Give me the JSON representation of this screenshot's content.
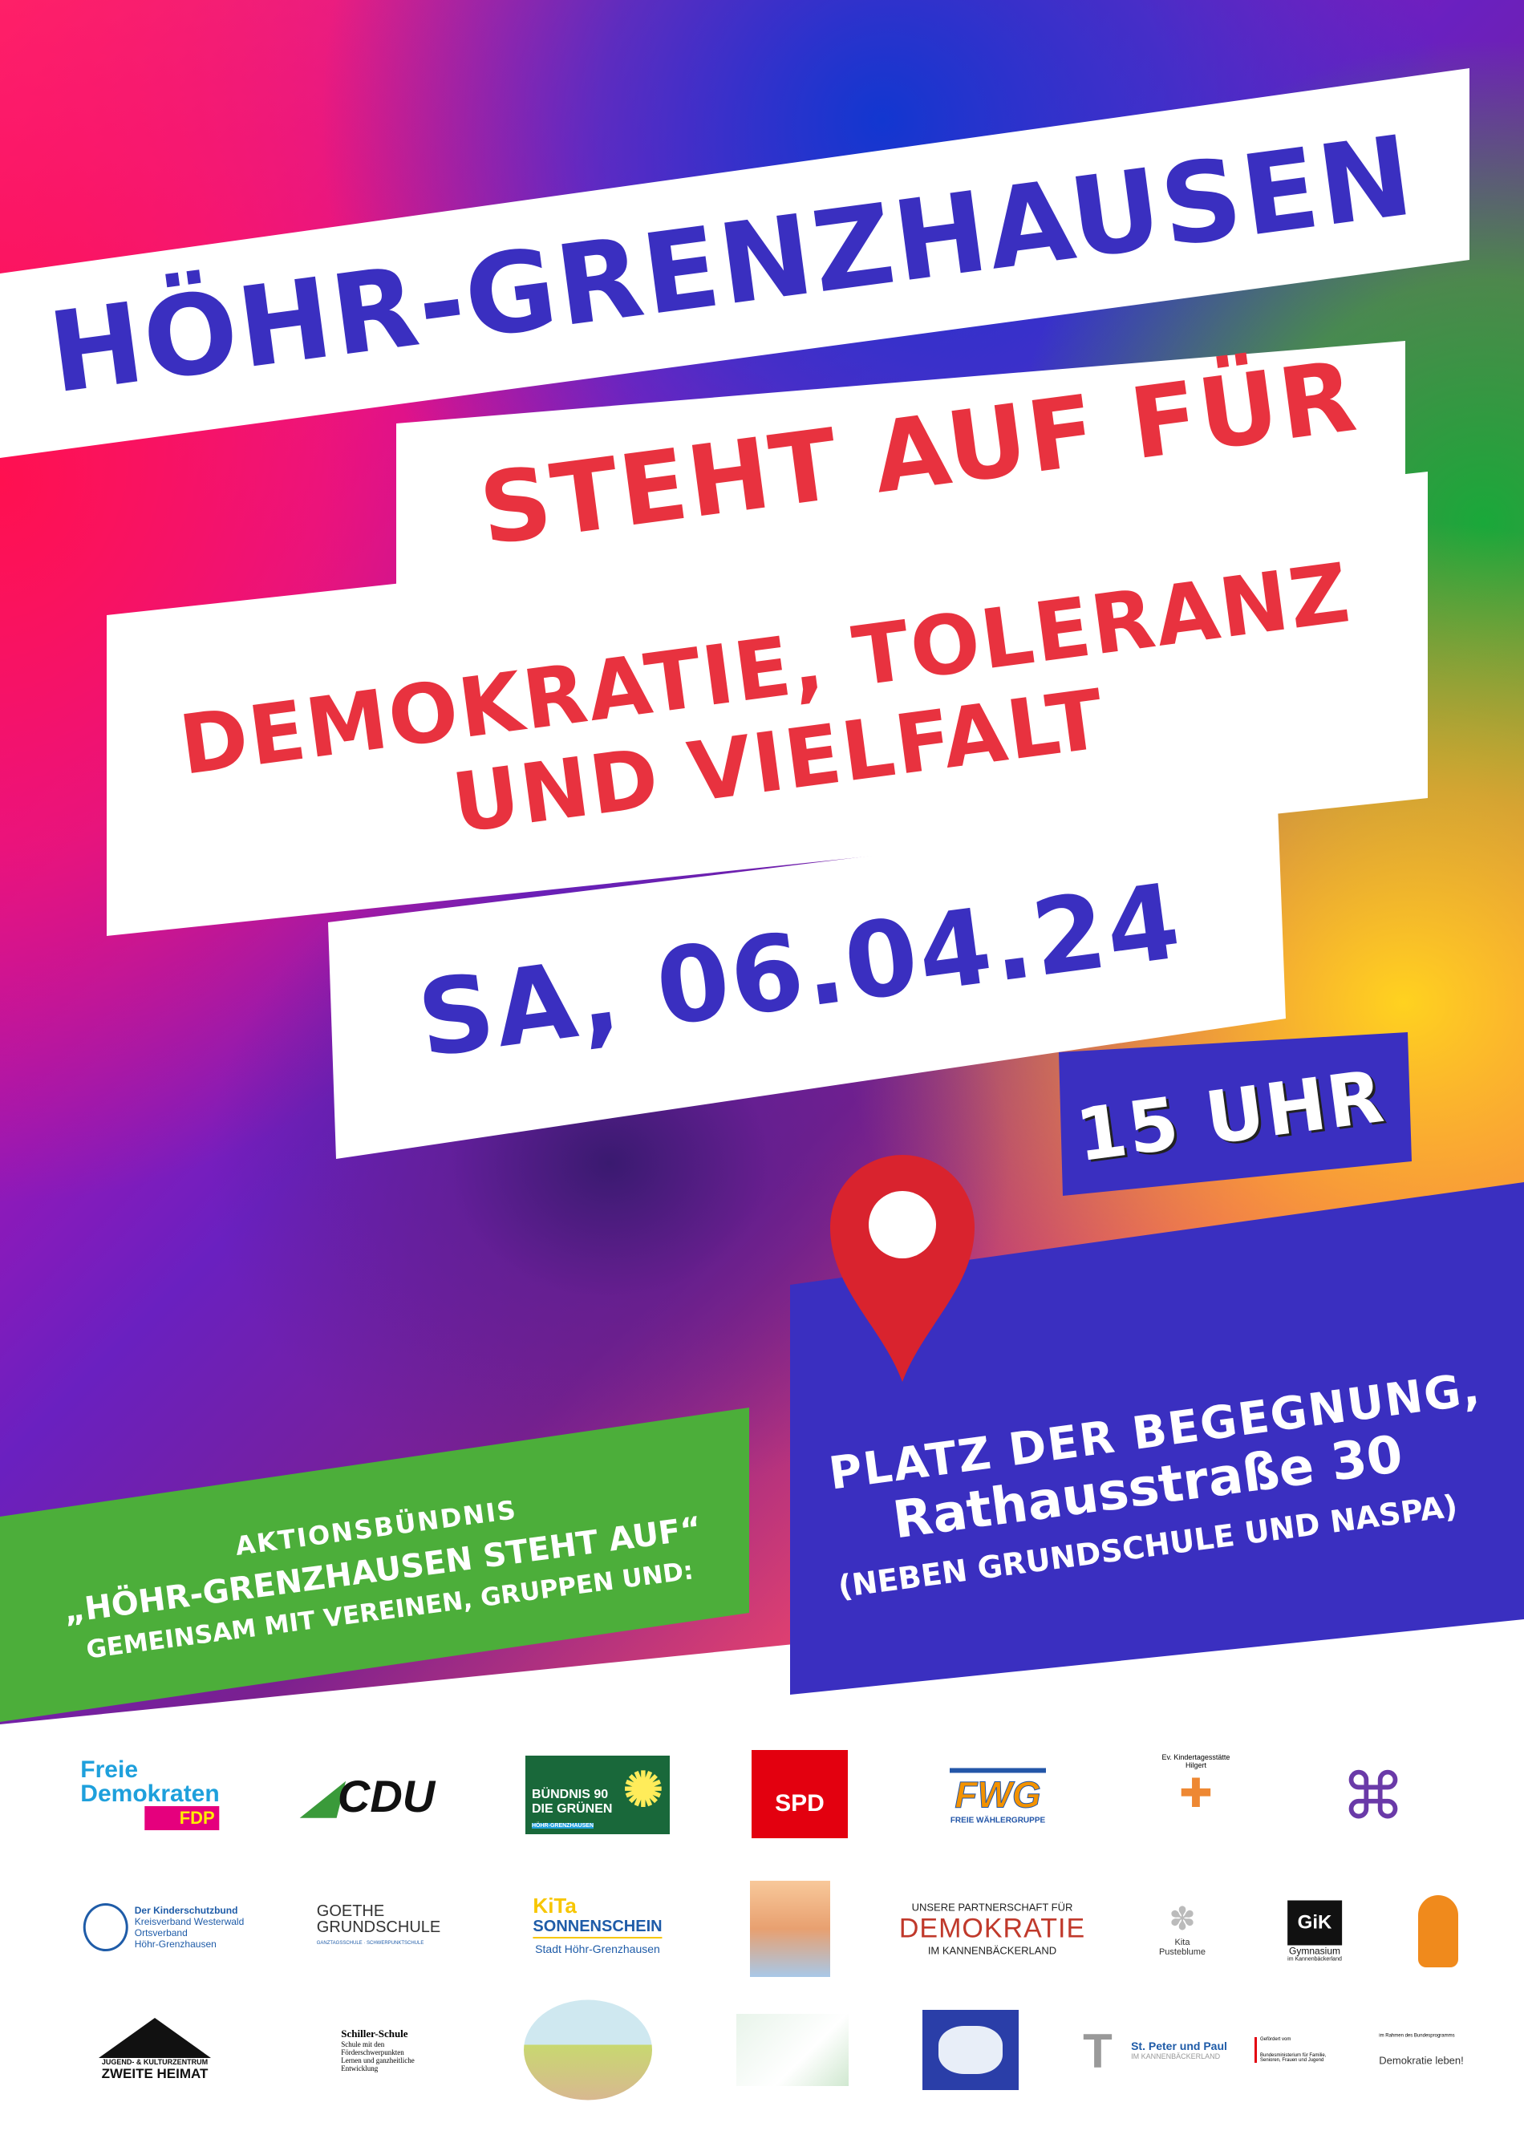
{
  "title_line1": "HÖHR-GRENZHAUSEN",
  "title_line2": "STEHT AUF FÜR",
  "title_line3": "DEMOKRATIE, TOLERANZ",
  "title_line4": "UND VIELFALT",
  "date": "SA, 06.04.24",
  "time": "15 UHR",
  "location": {
    "line1": "PLATZ DER BEGEGNUNG,",
    "line2": "Rathausstraße 30",
    "line3": "(NEBEN GRUNDSCHULE UND NASPA)",
    "icon": "map-pin-icon"
  },
  "alliance": {
    "line1": "AKTIONSBÜNDNIS",
    "line2": "„HÖHR-GRENZHAUSEN STEHT AUF“",
    "line3": "GEMEINSAM MIT VEREINEN, GRUPPEN UND:"
  },
  "colors": {
    "blue": "#3a2fc0",
    "red": "#e8323f",
    "green": "#4cae3a",
    "pin": "#d9232e"
  },
  "logos": {
    "fdp": [
      "Freie",
      "Demokraten",
      "FDP"
    ],
    "cdu": "CDU",
    "gruene": [
      "BÜNDNIS 90",
      "DIE GRÜNEN",
      "HÖHR-GRENZHAUSEN"
    ],
    "spd": "SPD",
    "fwg": [
      "FWG",
      "FREIE WÄHLERGRUPPE"
    ],
    "kita_ev": "Ev. Kindertagesstätte Hilgert",
    "kinderschutzbund": [
      "Der Kinderschutzbund",
      "Kreisverband Westerwald",
      "Ortsverband",
      "Höhr-Grenzhausen"
    ],
    "goethe": [
      "GOETHE",
      "GRUNDSCHULE",
      "GANZTAGSSCHULE · SCHWERPUNKTSCHULE"
    ],
    "kita_sonne": [
      "KiTa",
      "SONNENSCHEIN",
      "Stadt Höhr-Grenzhausen"
    ],
    "partnerschaft": [
      "UNSERE PARTNERSCHAFT FÜR",
      "DEMOKRATIE",
      "IM KANNENBÄCKERLAND"
    ],
    "pusteblume": [
      "Kita",
      "Pusteblume"
    ],
    "gymnasium": [
      "GiK",
      "Gymnasium",
      "im Kannenbäckerland"
    ],
    "zweite_heimat": [
      "JUGEND- & KULTURZENTRUM",
      "ZWEITE HEIMAT"
    ],
    "schiller": [
      "Schiller-Schule",
      "Schule mit den",
      "Förderschwerpunkten",
      "Lernen und ganzheitliche",
      "Entwicklung"
    ],
    "st_peter": [
      "St. Peter und Paul",
      "IM KANNENBÄCKERLAND"
    ],
    "bund": [
      "Gefördert vom",
      "Bundesministerium für Familie, Senioren, Frauen und Jugend",
      "im Rahmen des Bundesprogramms",
      "Demokratie leben!"
    ]
  }
}
